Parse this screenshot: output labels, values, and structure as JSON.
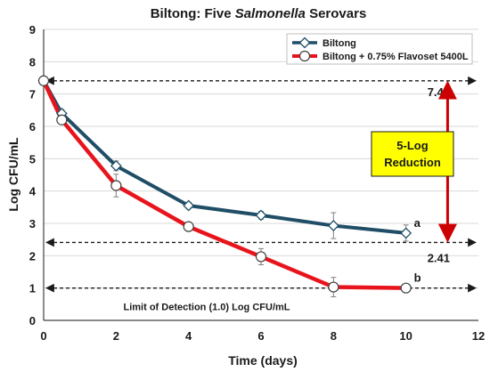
{
  "chart_data": {
    "type": "line",
    "title_prefix": "Biltong: Five ",
    "title_italic": "Salmonella",
    "title_suffix": " Serovars",
    "xlabel": "Time (days)",
    "ylabel": "Log CFU/mL",
    "xlim": [
      0,
      12
    ],
    "ylim": [
      0,
      9
    ],
    "xticks": [
      0,
      2,
      4,
      6,
      8,
      10,
      12
    ],
    "yticks": [
      0,
      1,
      2,
      3,
      4,
      5,
      6,
      7,
      8,
      9
    ],
    "legend_position": "top-right",
    "series": [
      {
        "name": "Biltong",
        "color": "#1f4e66",
        "marker": "diamond",
        "x": [
          0,
          0.5,
          2,
          4,
          6,
          8,
          10
        ],
        "y": [
          7.41,
          6.4,
          4.78,
          3.55,
          3.25,
          2.93,
          2.7
        ],
        "err": [
          0,
          0.12,
          0.15,
          0.1,
          0.12,
          0.4,
          0.25
        ]
      },
      {
        "name": "Biltong + 0.75% Flavoset 5400L",
        "color": "#e8141c",
        "marker": "circle",
        "x": [
          0,
          0.5,
          2,
          4,
          6,
          8,
          10
        ],
        "y": [
          7.41,
          6.2,
          4.17,
          2.9,
          1.97,
          1.03,
          1.0
        ],
        "err": [
          0,
          0.12,
          0.35,
          0.12,
          0.25,
          0.3,
          0.05
        ]
      }
    ],
    "reference_lines": [
      {
        "y": 7.41,
        "label": "7.41"
      },
      {
        "y": 2.41,
        "label": "2.41"
      },
      {
        "y": 1.0,
        "label": "Limit of Detection (1.0) Log CFU/mL"
      }
    ],
    "end_labels": [
      {
        "x": 10,
        "y": 2.7,
        "text": "a"
      },
      {
        "x": 10,
        "y": 1.0,
        "text": "b"
      }
    ],
    "reduction_box": {
      "line1": "5-Log",
      "line2": "Reduction",
      "fill": "#ffff00",
      "arrow_color": "#cc0000"
    }
  }
}
